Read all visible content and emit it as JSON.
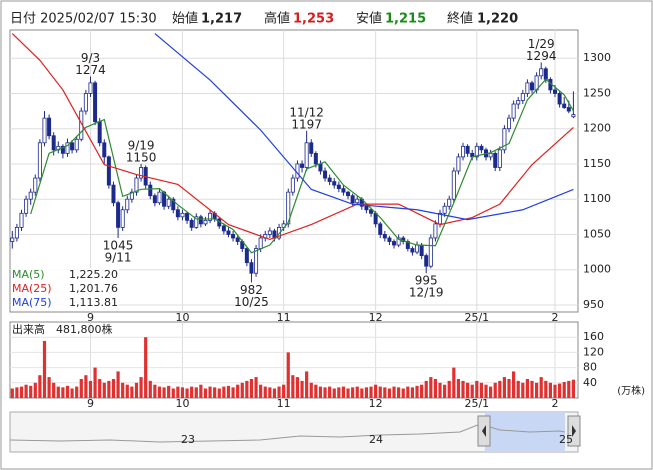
{
  "header": {
    "date": "日付 2025/02/07 15:30",
    "open_label": "始値",
    "open": "1,217",
    "high_label": "高値",
    "high": "1,253",
    "low_label": "安値",
    "low": "1,215",
    "close_label": "終値",
    "close": "1,220"
  },
  "chart_data": {
    "type": "candlestick",
    "up_color": "#ffffff",
    "down_color": "#1c2a8c",
    "outline_color": "#1c2a8c",
    "ylim": [
      940,
      1340
    ],
    "yticks": [
      950,
      1000,
      1050,
      1100,
      1150,
      1200,
      1250,
      1300
    ],
    "xlim": [
      -0.5,
      123
    ],
    "xticks": [
      {
        "value": 17,
        "label": "9"
      },
      {
        "value": 37,
        "label": "10"
      },
      {
        "value": 59,
        "label": "11"
      },
      {
        "value": 79,
        "label": "12"
      },
      {
        "value": 101,
        "label": "25/1"
      },
      {
        "value": 118,
        "label": "2"
      }
    ],
    "grid": true,
    "candles": [
      [
        1040,
        1055,
        1030,
        1045
      ],
      [
        1045,
        1065,
        1040,
        1060
      ],
      [
        1060,
        1085,
        1055,
        1080
      ],
      [
        1080,
        1105,
        1075,
        1100
      ],
      [
        1100,
        1115,
        1092,
        1110
      ],
      [
        1110,
        1135,
        1105,
        1130
      ],
      [
        1130,
        1185,
        1125,
        1180
      ],
      [
        1180,
        1225,
        1175,
        1215
      ],
      [
        1215,
        1220,
        1185,
        1190
      ],
      [
        1190,
        1195,
        1162,
        1170
      ],
      [
        1170,
        1182,
        1165,
        1175
      ],
      [
        1175,
        1178,
        1158,
        1165
      ],
      [
        1165,
        1186,
        1160,
        1180
      ],
      [
        1180,
        1184,
        1165,
        1170
      ],
      [
        1170,
        1190,
        1166,
        1185
      ],
      [
        1185,
        1230,
        1182,
        1225
      ],
      [
        1225,
        1255,
        1220,
        1250
      ],
      [
        1250,
        1274,
        1245,
        1265
      ],
      [
        1265,
        1268,
        1205,
        1210
      ],
      [
        1210,
        1215,
        1175,
        1180
      ],
      [
        1180,
        1185,
        1150,
        1160
      ],
      [
        1160,
        1162,
        1115,
        1120
      ],
      [
        1120,
        1125,
        1090,
        1095
      ],
      [
        1095,
        1098,
        1045,
        1060
      ],
      [
        1060,
        1090,
        1055,
        1085
      ],
      [
        1085,
        1105,
        1080,
        1100
      ],
      [
        1100,
        1115,
        1095,
        1110
      ],
      [
        1110,
        1135,
        1105,
        1130
      ],
      [
        1130,
        1150,
        1125,
        1145
      ],
      [
        1145,
        1148,
        1115,
        1120
      ],
      [
        1120,
        1125,
        1100,
        1105
      ],
      [
        1105,
        1108,
        1090,
        1095
      ],
      [
        1095,
        1115,
        1092,
        1110
      ],
      [
        1110,
        1112,
        1085,
        1090
      ],
      [
        1090,
        1105,
        1086,
        1100
      ],
      [
        1100,
        1103,
        1080,
        1085
      ],
      [
        1085,
        1090,
        1070,
        1075
      ],
      [
        1075,
        1085,
        1070,
        1080
      ],
      [
        1080,
        1082,
        1065,
        1070
      ],
      [
        1070,
        1073,
        1055,
        1060
      ],
      [
        1060,
        1080,
        1058,
        1075
      ],
      [
        1075,
        1078,
        1060,
        1065
      ],
      [
        1065,
        1075,
        1062,
        1070
      ],
      [
        1070,
        1085,
        1066,
        1080
      ],
      [
        1080,
        1083,
        1068,
        1072
      ],
      [
        1072,
        1075,
        1058,
        1062
      ],
      [
        1062,
        1066,
        1050,
        1055
      ],
      [
        1055,
        1060,
        1046,
        1050
      ],
      [
        1050,
        1055,
        1040,
        1045
      ],
      [
        1045,
        1050,
        1035,
        1040
      ],
      [
        1040,
        1043,
        1025,
        1030
      ],
      [
        1030,
        1033,
        1005,
        1010
      ],
      [
        1010,
        1015,
        982,
        995
      ],
      [
        995,
        1035,
        990,
        1030
      ],
      [
        1030,
        1050,
        1025,
        1045
      ],
      [
        1045,
        1055,
        1040,
        1050
      ],
      [
        1050,
        1060,
        1045,
        1055
      ],
      [
        1055,
        1058,
        1040,
        1045
      ],
      [
        1045,
        1065,
        1042,
        1060
      ],
      [
        1060,
        1070,
        1055,
        1065
      ],
      [
        1065,
        1115,
        1060,
        1110
      ],
      [
        1110,
        1135,
        1105,
        1130
      ],
      [
        1130,
        1155,
        1125,
        1150
      ],
      [
        1150,
        1155,
        1138,
        1145
      ],
      [
        1145,
        1197,
        1140,
        1180
      ],
      [
        1180,
        1185,
        1160,
        1165
      ],
      [
        1165,
        1168,
        1145,
        1150
      ],
      [
        1150,
        1155,
        1135,
        1140
      ],
      [
        1140,
        1145,
        1125,
        1130
      ],
      [
        1130,
        1135,
        1120,
        1125
      ],
      [
        1125,
        1130,
        1115,
        1120
      ],
      [
        1120,
        1125,
        1110,
        1115
      ],
      [
        1115,
        1120,
        1105,
        1110
      ],
      [
        1110,
        1112,
        1100,
        1105
      ],
      [
        1105,
        1108,
        1090,
        1095
      ],
      [
        1095,
        1105,
        1092,
        1100
      ],
      [
        1100,
        1103,
        1085,
        1090
      ],
      [
        1090,
        1093,
        1080,
        1085
      ],
      [
        1085,
        1088,
        1075,
        1080
      ],
      [
        1080,
        1083,
        1060,
        1065
      ],
      [
        1065,
        1068,
        1045,
        1050
      ],
      [
        1050,
        1055,
        1040,
        1045
      ],
      [
        1045,
        1048,
        1035,
        1040
      ],
      [
        1040,
        1043,
        1030,
        1035
      ],
      [
        1035,
        1050,
        1032,
        1045
      ],
      [
        1045,
        1048,
        1036,
        1040
      ],
      [
        1040,
        1043,
        1026,
        1030
      ],
      [
        1030,
        1033,
        1020,
        1025
      ],
      [
        1025,
        1040,
        1022,
        1035
      ],
      [
        1035,
        1038,
        1015,
        1020
      ],
      [
        1020,
        1023,
        995,
        1005
      ],
      [
        1005,
        1050,
        1002,
        1045
      ],
      [
        1045,
        1070,
        1040,
        1065
      ],
      [
        1065,
        1085,
        1060,
        1080
      ],
      [
        1080,
        1095,
        1075,
        1090
      ],
      [
        1090,
        1105,
        1085,
        1100
      ],
      [
        1100,
        1145,
        1095,
        1140
      ],
      [
        1140,
        1165,
        1135,
        1160
      ],
      [
        1160,
        1180,
        1155,
        1175
      ],
      [
        1175,
        1178,
        1160,
        1165
      ],
      [
        1165,
        1170,
        1155,
        1160
      ],
      [
        1160,
        1180,
        1155,
        1175
      ],
      [
        1175,
        1178,
        1165,
        1170
      ],
      [
        1170,
        1173,
        1155,
        1160
      ],
      [
        1160,
        1170,
        1155,
        1165
      ],
      [
        1165,
        1168,
        1140,
        1145
      ],
      [
        1145,
        1175,
        1140,
        1170
      ],
      [
        1170,
        1205,
        1165,
        1200
      ],
      [
        1200,
        1220,
        1195,
        1215
      ],
      [
        1215,
        1240,
        1210,
        1235
      ],
      [
        1235,
        1245,
        1228,
        1240
      ],
      [
        1240,
        1255,
        1235,
        1250
      ],
      [
        1250,
        1270,
        1245,
        1265
      ],
      [
        1265,
        1268,
        1250,
        1255
      ],
      [
        1255,
        1280,
        1250,
        1275
      ],
      [
        1275,
        1294,
        1270,
        1285
      ],
      [
        1285,
        1288,
        1265,
        1270
      ],
      [
        1270,
        1273,
        1250,
        1255
      ],
      [
        1255,
        1262,
        1245,
        1250
      ],
      [
        1250,
        1253,
        1230,
        1235
      ],
      [
        1235,
        1245,
        1228,
        1230
      ],
      [
        1230,
        1240,
        1222,
        1225
      ],
      [
        1217,
        1253,
        1215,
        1220
      ]
    ],
    "series": [
      {
        "name": "MA(5)",
        "legend_value": "1,225.20",
        "color": "#2e8b2e",
        "x": [
          4,
          8,
          12,
          16,
          20,
          24,
          28,
          32,
          36,
          40,
          44,
          48,
          52,
          56,
          60,
          64,
          68,
          72,
          76,
          80,
          84,
          88,
          92,
          96,
          100,
          104,
          108,
          112,
          116,
          120,
          122
        ],
        "values": [
          1079,
          1165,
          1176,
          1202,
          1213,
          1104,
          1114,
          1115,
          1092,
          1072,
          1072,
          1057,
          1024,
          1035,
          1067,
          1143,
          1153,
          1120,
          1100,
          1074,
          1043,
          1035,
          1034,
          1095,
          1160,
          1166,
          1179,
          1241,
          1270,
          1248,
          1225.2
        ]
      },
      {
        "name": "MA(25)",
        "legend_value": "1,201.76",
        "color": "#e02020",
        "x": [
          0,
          6,
          11,
          20,
          27,
          36,
          47,
          56,
          65,
          75,
          84,
          93,
          100,
          106,
          113,
          122
        ],
        "values": [
          1335,
          1297,
          1255,
          1149,
          1135,
          1121,
          1064,
          1043,
          1064,
          1093,
          1093,
          1064,
          1074,
          1093,
          1149,
          1201.76
        ]
      },
      {
        "name": "MA(75)",
        "legend_value": "1,113.81",
        "color": "#2040e0",
        "x": [
          31,
          43,
          54,
          65,
          74,
          88,
          99,
          111,
          122
        ],
        "values": [
          1335,
          1269,
          1198,
          1114,
          1093,
          1085,
          1071,
          1085,
          1113.81
        ]
      }
    ],
    "annotations": [
      {
        "index": 17,
        "date": "9/3",
        "value": 1274,
        "position": "above"
      },
      {
        "index": 23,
        "date": "9/11",
        "value": 1045,
        "position": "below"
      },
      {
        "index": 28,
        "date": "9/19",
        "value": 1150,
        "position": "above"
      },
      {
        "index": 52,
        "date": "10/25",
        "value": 982,
        "position": "below"
      },
      {
        "index": 64,
        "date": "11/12",
        "value": 1197,
        "position": "above"
      },
      {
        "index": 90,
        "date": "12/19",
        "value": 995,
        "position": "below"
      },
      {
        "index": 115,
        "date": "1/29",
        "value": 1294,
        "position": "above"
      }
    ],
    "volume": {
      "title": "出来高",
      "latest": "481,800株",
      "unit": "(万株)",
      "color": "#e03030",
      "ylim": [
        0,
        200
      ],
      "yticks": [
        40,
        80,
        120,
        160
      ],
      "values": [
        25,
        28,
        30,
        35,
        32,
        40,
        60,
        150,
        55,
        40,
        30,
        28,
        32,
        25,
        30,
        50,
        60,
        45,
        80,
        50,
        40,
        45,
        50,
        70,
        40,
        35,
        30,
        40,
        55,
        160,
        45,
        35,
        30,
        28,
        32,
        25,
        30,
        28,
        25,
        30,
        28,
        35,
        25,
        30,
        28,
        25,
        30,
        32,
        28,
        35,
        40,
        45,
        50,
        55,
        35,
        30,
        28,
        25,
        30,
        35,
        120,
        60,
        55,
        45,
        70,
        40,
        35,
        30,
        28,
        30,
        25,
        28,
        30,
        25,
        28,
        30,
        25,
        28,
        30,
        35,
        30,
        28,
        25,
        30,
        28,
        25,
        30,
        28,
        32,
        35,
        45,
        55,
        50,
        40,
        35,
        45,
        80,
        50,
        45,
        40,
        35,
        45,
        40,
        35,
        30,
        40,
        45,
        55,
        50,
        70,
        45,
        40,
        50,
        45,
        40,
        55,
        45,
        40,
        35,
        38,
        42,
        45,
        48.18
      ]
    }
  },
  "navigator": {
    "labels": [
      "23",
      "24",
      "25"
    ]
  }
}
